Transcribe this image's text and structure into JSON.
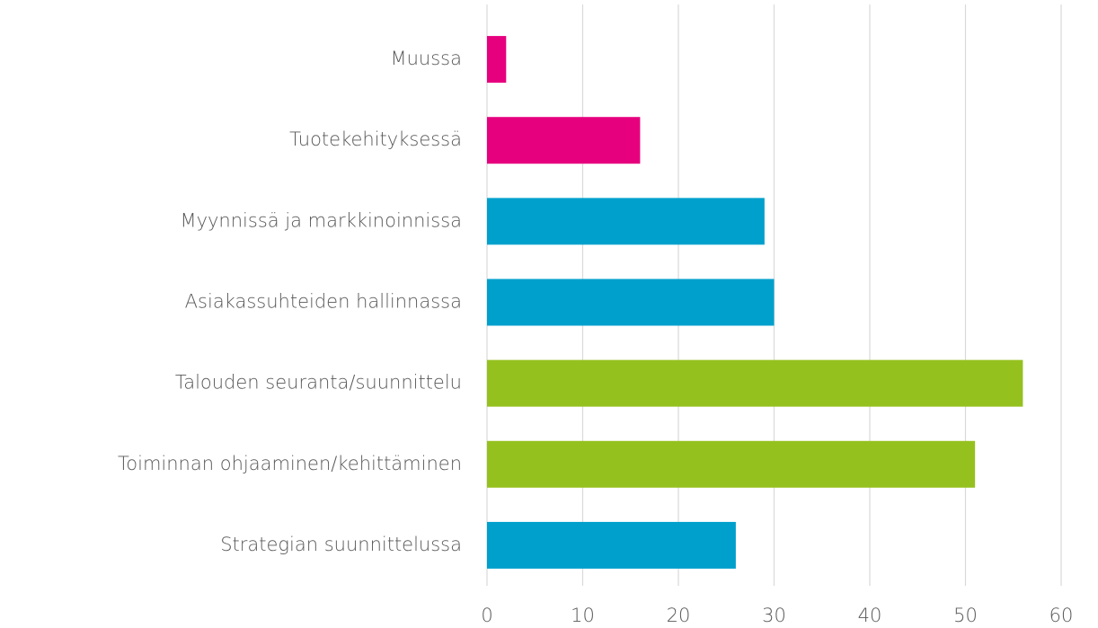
{
  "chart_data": {
    "type": "hbar",
    "categories": [
      "Muussa",
      "Tuotekehityksessä",
      "Myynnissä ja markkinoinnissa",
      "Asiakassuhteiden hallinnassa",
      "Talouden seuranta/suunnittelu",
      "Toiminnan ohjaaminen/kehittäminen",
      "Strategian suunnittelussa"
    ],
    "values": [
      2,
      16,
      29,
      30,
      56,
      51,
      26
    ],
    "colors": [
      "#e6007e",
      "#e6007e",
      "#00a0cc",
      "#00a0cc",
      "#95c11f",
      "#95c11f",
      "#00a0cc"
    ],
    "xlim": [
      0,
      60
    ],
    "xticks": [
      0,
      10,
      20,
      30,
      40,
      50,
      60
    ],
    "grid": true
  }
}
